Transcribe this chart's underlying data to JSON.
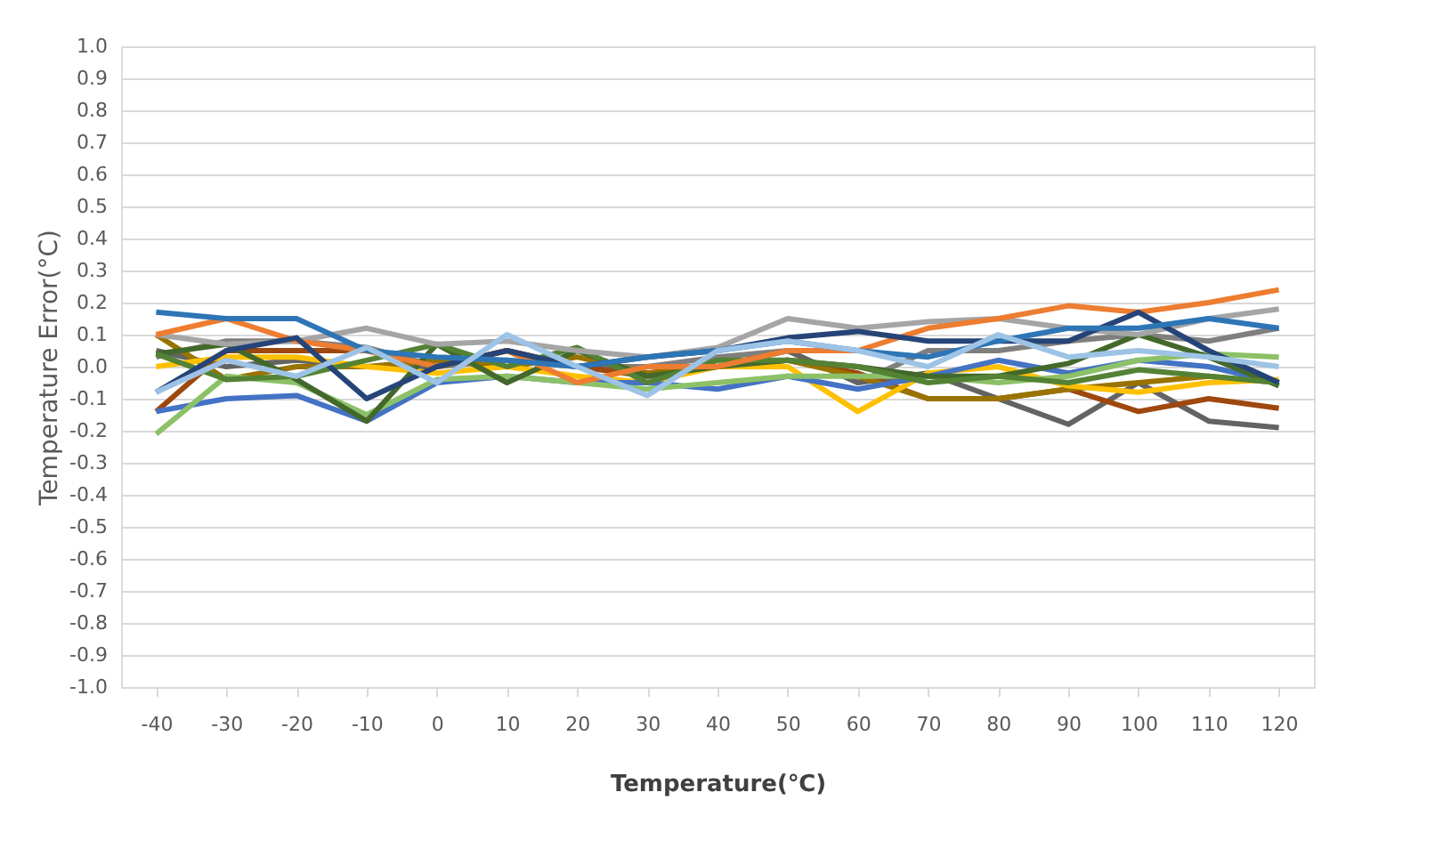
{
  "chart_data": {
    "type": "line",
    "xlabel": "Temperature(℃)",
    "ylabel": "Temperature Error(°C)",
    "categories": [
      "-40",
      "-30",
      "-20",
      "-10",
      "0",
      "10",
      "20",
      "30",
      "40",
      "50",
      "60",
      "70",
      "80",
      "90",
      "100",
      "110",
      "120"
    ],
    "ylim": [
      -1.0,
      1.0
    ],
    "yticks": [
      {
        "value": -1.0,
        "label": "-1.0"
      },
      {
        "value": -0.9,
        "label": "-0.9"
      },
      {
        "value": -0.8,
        "label": "-0.8"
      },
      {
        "value": -0.7,
        "label": "-0.7"
      },
      {
        "value": -0.6,
        "label": "-0.6"
      },
      {
        "value": -0.5,
        "label": "-0.5"
      },
      {
        "value": -0.4,
        "label": "-0.4"
      },
      {
        "value": -0.3,
        "label": "-0.3"
      },
      {
        "value": -0.2,
        "label": "-0.2"
      },
      {
        "value": -0.1,
        "label": "-0.1"
      },
      {
        "value": 0,
        "label": "0.0"
      },
      {
        "value": 0.1,
        "label": "0.1"
      },
      {
        "value": 0.2,
        "label": "0.2"
      },
      {
        "value": 0.3,
        "label": "0.3"
      },
      {
        "value": 0.4,
        "label": "0.4"
      },
      {
        "value": 0.5,
        "label": "0.5"
      },
      {
        "value": 0.6,
        "label": "0.6"
      },
      {
        "value": 0.7,
        "label": "0.7"
      },
      {
        "value": 0.8,
        "label": "0.8"
      },
      {
        "value": 0.9,
        "label": "0.9"
      },
      {
        "value": 1.0,
        "label": "1.0"
      }
    ],
    "grid": "y",
    "legend": false,
    "marker": "none",
    "line_style": "solid",
    "series": [
      {
        "color": "#7f7f7f",
        "values": [
          0.03,
          0.08,
          0.08,
          0.06,
          0.0,
          0.02,
          0.0,
          0.0,
          0.03,
          0.05,
          -0.05,
          0.05,
          0.05,
          0.08,
          0.1,
          0.08,
          0.12
        ]
      },
      {
        "color": "#636363",
        "values": [
          0.05,
          0.0,
          0.02,
          0.0,
          0.0,
          0.05,
          0.0,
          -0.02,
          0.0,
          0.05,
          -0.05,
          -0.02,
          -0.1,
          -0.18,
          -0.05,
          -0.17,
          -0.19
        ]
      },
      {
        "color": "#9e480e",
        "values": [
          -0.14,
          0.05,
          0.05,
          0.05,
          0.0,
          0.05,
          0.0,
          -0.03,
          0.0,
          0.02,
          -0.02,
          -0.1,
          -0.1,
          -0.07,
          -0.14,
          -0.1,
          -0.13
        ]
      },
      {
        "color": "#997300",
        "values": [
          0.1,
          -0.04,
          0.0,
          0.0,
          0.02,
          0.0,
          0.03,
          -0.02,
          0.0,
          0.02,
          -0.03,
          -0.1,
          -0.1,
          -0.07,
          -0.05,
          -0.03,
          -0.05
        ]
      },
      {
        "color": "#ffc000",
        "values": [
          0.0,
          0.03,
          0.03,
          0.0,
          -0.02,
          0.0,
          -0.03,
          -0.05,
          0.0,
          0.0,
          -0.14,
          -0.02,
          0.0,
          -0.06,
          -0.08,
          -0.05,
          -0.04
        ]
      },
      {
        "color": "#4472c4",
        "values": [
          -0.14,
          -0.1,
          -0.09,
          -0.17,
          -0.05,
          -0.03,
          -0.05,
          -0.05,
          -0.07,
          -0.03,
          -0.07,
          -0.03,
          0.02,
          -0.02,
          0.02,
          0.0,
          -0.05
        ]
      },
      {
        "color": "#8cc168",
        "values": [
          -0.21,
          -0.03,
          -0.05,
          -0.15,
          -0.04,
          -0.03,
          -0.05,
          -0.07,
          -0.05,
          -0.03,
          -0.03,
          -0.03,
          -0.05,
          -0.03,
          0.02,
          0.04,
          0.03
        ]
      },
      {
        "color": "#43682b",
        "values": [
          0.04,
          0.07,
          -0.04,
          -0.17,
          0.07,
          -0.05,
          0.05,
          -0.03,
          0.0,
          0.02,
          0.0,
          -0.03,
          -0.03,
          0.01,
          0.1,
          0.03,
          -0.06
        ]
      },
      {
        "color": "#548235",
        "values": [
          0.04,
          -0.04,
          -0.03,
          0.02,
          0.07,
          0.0,
          0.06,
          -0.05,
          0.02,
          0.02,
          0.0,
          -0.05,
          -0.03,
          -0.05,
          -0.01,
          -0.03,
          -0.05
        ]
      },
      {
        "color": "#a5a5a5",
        "values": [
          0.1,
          0.07,
          0.08,
          0.12,
          0.07,
          0.08,
          0.05,
          0.03,
          0.06,
          0.15,
          0.12,
          0.14,
          0.15,
          0.12,
          0.1,
          0.15,
          0.18
        ]
      },
      {
        "color": "#ed7d31",
        "values": [
          0.1,
          0.15,
          0.08,
          0.05,
          0.0,
          0.05,
          -0.05,
          0.0,
          0.0,
          0.05,
          0.05,
          0.12,
          0.15,
          0.19,
          0.17,
          0.2,
          0.24
        ]
      },
      {
        "color": "#264478",
        "values": [
          -0.08,
          0.05,
          0.09,
          -0.1,
          0.0,
          0.05,
          0.0,
          0.03,
          0.05,
          0.09,
          0.11,
          0.08,
          0.08,
          0.08,
          0.17,
          0.05,
          -0.05
        ]
      },
      {
        "color": "#2e75b6",
        "values": [
          0.17,
          0.15,
          0.15,
          0.05,
          0.03,
          0.02,
          0.0,
          0.03,
          0.05,
          0.08,
          0.05,
          0.03,
          0.08,
          0.12,
          0.12,
          0.15,
          0.12
        ]
      },
      {
        "color": "#9dc3e6",
        "values": [
          -0.08,
          0.02,
          -0.03,
          0.06,
          -0.05,
          0.1,
          0.0,
          -0.09,
          0.05,
          0.08,
          0.05,
          0.0,
          0.1,
          0.03,
          0.05,
          0.03,
          0.0
        ]
      }
    ]
  }
}
